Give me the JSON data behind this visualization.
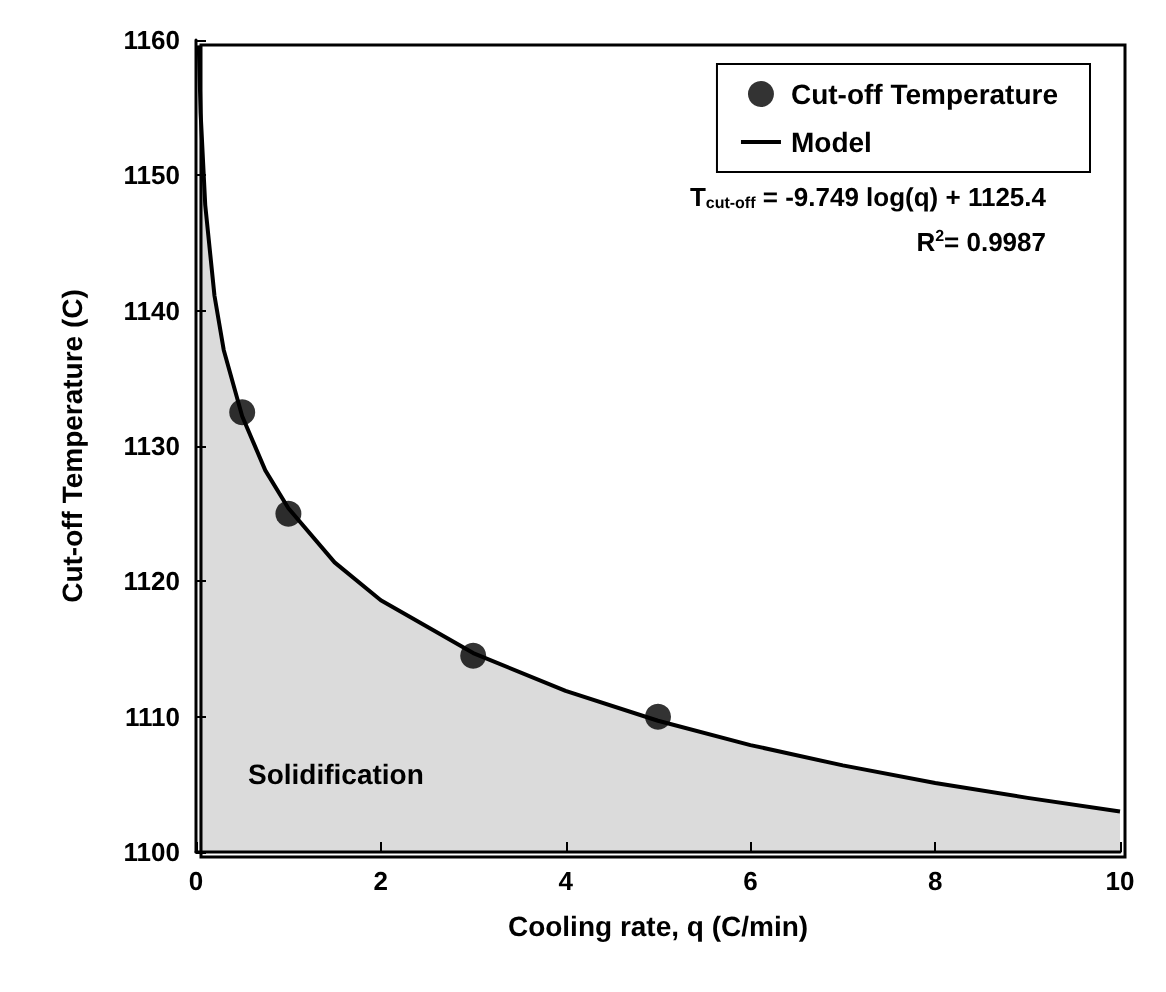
{
  "chart_data": {
    "type": "scatter",
    "xlabel": "Cooling rate, q (C/min)",
    "ylabel": "Cut-off Temperature (C)",
    "xlim": [
      0,
      10
    ],
    "xticks": [
      0,
      2,
      4,
      6,
      8,
      10
    ],
    "ylim": [
      1100,
      1160
    ],
    "yticks": [
      1100,
      1110,
      1120,
      1130,
      1140,
      1150,
      1160
    ],
    "grid": false,
    "legend": "top right",
    "series": [
      {
        "name": "Cut-off Temperature",
        "marker": "circle",
        "color": "#000000",
        "x": [
          0.5,
          1,
          3,
          5
        ],
        "values": [
          1132.5,
          1125,
          1114.5,
          1110
        ]
      },
      {
        "name": "Model",
        "type": "area",
        "marker": "none",
        "color": "#000000",
        "x": [
          0.03,
          0.05,
          0.1,
          0.2,
          0.3,
          0.5,
          0.75,
          1,
          1.5,
          2,
          3,
          4,
          5,
          6,
          7,
          8,
          9,
          10
        ],
        "values": [
          1159.6,
          1154.6,
          1147.8,
          1141.1,
          1137.1,
          1132.2,
          1128.2,
          1125.4,
          1121.4,
          1118.6,
          1114.7,
          1111.9,
          1109.7,
          1107.9,
          1106.4,
          1105.1,
          1104.0,
          1103.0
        ]
      }
    ],
    "annotations": [
      "T$_{cut-off}$ = -9.749 log(q) + 1125.4",
      "R$^{2}$= 0.9987",
      "Solidification"
    ]
  }
}
